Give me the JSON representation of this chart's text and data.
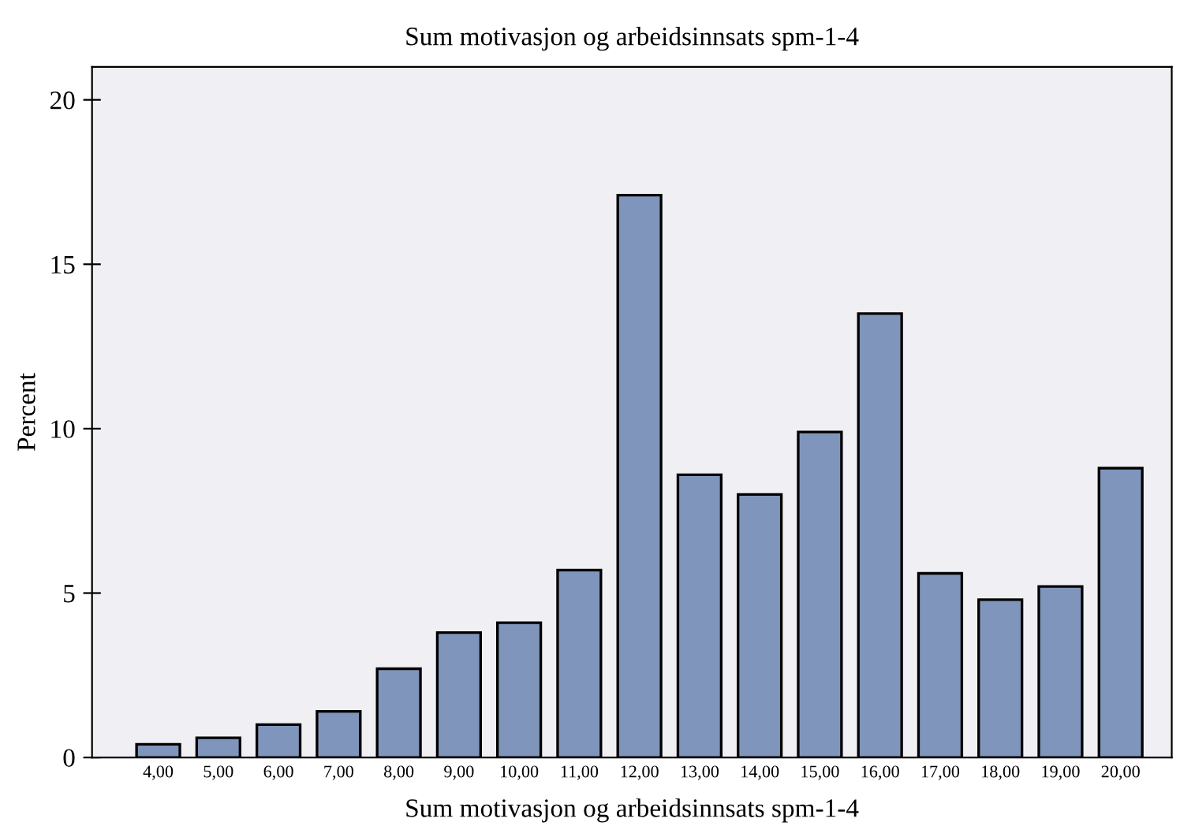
{
  "chart_data": {
    "type": "bar",
    "title": "Sum motivasjon og arbeidsinnsats spm-1-4",
    "xlabel": "Sum motivasjon og arbeidsinnsats spm-1-4",
    "ylabel": "Percent",
    "categories": [
      "4,00",
      "5,00",
      "6,00",
      "7,00",
      "8,00",
      "9,00",
      "10,00",
      "11,00",
      "12,00",
      "13,00",
      "14,00",
      "15,00",
      "16,00",
      "17,00",
      "18,00",
      "19,00",
      "20,00"
    ],
    "values": [
      0.4,
      0.6,
      1.0,
      1.4,
      2.7,
      3.8,
      4.1,
      5.7,
      17.1,
      8.6,
      8.0,
      9.9,
      13.5,
      5.6,
      4.8,
      5.2,
      8.8
    ],
    "color": "#8095bb",
    "ylim": [
      0,
      21
    ],
    "yticks": [
      0,
      5,
      10,
      15,
      20
    ],
    "grid": false
  }
}
